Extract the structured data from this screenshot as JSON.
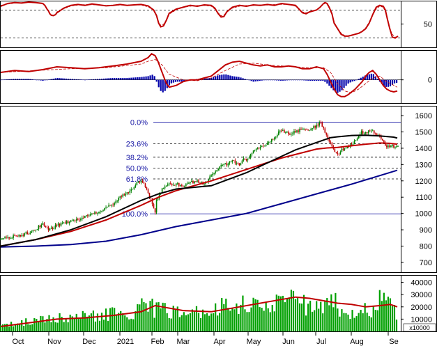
{
  "chart_data": [
    {
      "panel": "stochastic",
      "type": "line",
      "ylim": [
        0,
        100
      ],
      "y_ticks": [
        {
          "value": 50,
          "label": "50"
        }
      ],
      "ref_lines": [
        80,
        20
      ],
      "colors": {
        "main": "#c00000",
        "signal": "#c00000"
      },
      "series": [
        {
          "role": "main",
          "x": [
            0,
            10,
            20,
            30,
            40,
            50,
            60,
            63,
            66,
            68,
            70,
            72,
            75,
            78,
            80,
            90,
            100,
            110,
            120,
            130,
            140,
            150,
            160,
            170,
            180,
            190,
            200,
            210,
            218,
            222,
            225,
            228,
            232,
            236,
            240,
            250,
            260,
            270,
            280,
            290,
            300,
            305,
            310,
            314,
            318,
            322,
            330,
            340,
            350,
            360,
            370,
            380,
            390,
            400,
            410,
            420,
            425,
            430,
            435,
            440,
            450,
            455,
            460,
            462,
            465,
            468,
            472,
            475,
            480,
            485,
            490,
            495,
            500,
            505,
            510,
            515,
            520,
            525,
            530,
            535,
            540,
            545,
            548,
            551,
            554,
            558,
            562,
            566
          ],
          "y": [
            88,
            94,
            96,
            95,
            97,
            96,
            94,
            90,
            82,
            78,
            72,
            69,
            68,
            70,
            74,
            84,
            90,
            92,
            90,
            93,
            91,
            89,
            90,
            92,
            90,
            91,
            92,
            89,
            80,
            68,
            52,
            44,
            46,
            58,
            73,
            82,
            86,
            90,
            88,
            91,
            90,
            84,
            72,
            65,
            66,
            76,
            86,
            90,
            88,
            91,
            90,
            92,
            90,
            94,
            92,
            90,
            82,
            74,
            72,
            76,
            80,
            86,
            94,
            96,
            94,
            86,
            72,
            52,
            40,
            28,
            24,
            24,
            26,
            28,
            30,
            34,
            40,
            52,
            70,
            86,
            90,
            88,
            80,
            60,
            42,
            22,
            20,
            24
          ]
        }
      ]
    },
    {
      "panel": "macd",
      "type": "line+histogram",
      "ylim": [
        -25,
        32
      ],
      "y_ticks": [
        {
          "value": 0,
          "label": "0"
        }
      ],
      "colors": {
        "line": "#c00000",
        "signal": "#c00000",
        "histogram": "#0000aa"
      },
      "series": [
        {
          "role": "macd",
          "x": [
            0,
            20,
            40,
            60,
            80,
            100,
            120,
            140,
            160,
            180,
            200,
            210,
            215,
            220,
            224,
            228,
            232,
            236,
            240,
            250,
            260,
            270,
            280,
            290,
            300,
            310,
            320,
            330,
            340,
            350,
            360,
            370,
            380,
            390,
            400,
            410,
            420,
            430,
            440,
            450,
            460,
            465,
            470,
            475,
            480,
            485,
            490,
            495,
            500,
            505,
            510,
            515,
            520,
            525,
            530,
            535,
            540,
            545,
            550,
            555,
            560,
            565
          ],
          "y": [
            8,
            10,
            9,
            11,
            14,
            13,
            12,
            13,
            15,
            17,
            20,
            24,
            28,
            26,
            20,
            12,
            4,
            -4,
            -8,
            -6,
            -2,
            0,
            0,
            2,
            4,
            10,
            16,
            19,
            20,
            18,
            16,
            15,
            16,
            14,
            14,
            15,
            14,
            12,
            12,
            14,
            12,
            6,
            -2,
            -10,
            -16,
            -18,
            -18,
            -16,
            -13,
            -10,
            -6,
            -2,
            4,
            8,
            10,
            6,
            0,
            -6,
            -10,
            -12,
            -13,
            -12
          ]
        },
        {
          "role": "signal",
          "x": [
            0,
            50,
            100,
            150,
            200,
            210,
            220,
            230,
            240,
            260,
            280,
            300,
            320,
            340,
            360,
            380,
            400,
            420,
            440,
            460,
            470,
            480,
            490,
            500,
            510,
            520,
            530,
            540,
            550,
            565
          ],
          "y": [
            8,
            10,
            12,
            13,
            17,
            20,
            22,
            16,
            6,
            0,
            -1,
            2,
            10,
            17,
            18,
            16,
            15,
            14,
            13,
            13,
            8,
            -4,
            -12,
            -14,
            -10,
            -4,
            2,
            4,
            -2,
            -8
          ]
        },
        {
          "role": "histogram",
          "x": [
            0,
            20,
            40,
            60,
            80,
            100,
            120,
            140,
            160,
            180,
            200,
            210,
            214,
            218,
            222,
            226,
            230,
            234,
            238,
            242,
            250,
            260,
            280,
            300,
            310,
            320,
            330,
            340,
            360,
            380,
            400,
            420,
            440,
            460,
            465,
            470,
            475,
            480,
            485,
            490,
            495,
            500,
            505,
            510,
            515,
            520,
            525,
            530,
            535,
            540,
            545,
            550,
            555,
            560,
            565
          ],
          "y": [
            0,
            1,
            1,
            -1,
            2,
            1,
            0,
            1,
            2,
            2,
            3,
            4,
            5,
            6,
            -2,
            -10,
            -14,
            -12,
            -8,
            -4,
            -2,
            -2,
            1,
            2,
            5,
            6,
            4,
            3,
            -2,
            0,
            -1,
            0,
            -1,
            -1,
            -4,
            -8,
            -12,
            -14,
            -12,
            -8,
            -4,
            -2,
            -1,
            1,
            3,
            5,
            6,
            7,
            3,
            -2,
            -6,
            -8,
            -7,
            -4,
            -3
          ]
        }
      ]
    },
    {
      "panel": "price",
      "type": "candlestick",
      "ylim": [
        640,
        1660
      ],
      "y_ticks": [
        {
          "value": 700,
          "label": "700"
        },
        {
          "value": 800,
          "label": "800"
        },
        {
          "value": 900,
          "label": "900"
        },
        {
          "value": 1000,
          "label": "1000"
        },
        {
          "value": 1100,
          "label": "1100"
        },
        {
          "value": 1200,
          "label": "1200"
        },
        {
          "value": 1300,
          "label": "1300"
        },
        {
          "value": 1400,
          "label": "1400"
        },
        {
          "value": 1500,
          "label": "1500"
        },
        {
          "value": 1600,
          "label": "1600"
        }
      ],
      "fibonacci": [
        {
          "label": "0.0%",
          "value": 1560
        },
        {
          "label": "23.6%",
          "value": 1427
        },
        {
          "label": "38.2%",
          "value": 1345
        },
        {
          "label": "50.0%",
          "value": 1278
        },
        {
          "label": "61.8%",
          "value": 1212
        },
        {
          "label": "100.0%",
          "value": 998
        }
      ],
      "colors": {
        "up": "#008000",
        "down": "#c00000",
        "ma_short": "#c00000",
        "ma_medium": "#000000",
        "ma_long": "#00008b",
        "fib": "#1a1aa6"
      },
      "close": {
        "x": [
          0,
          20,
          40,
          55,
          60,
          65,
          70,
          80,
          100,
          120,
          140,
          150,
          160,
          170,
          180,
          190,
          195,
          200,
          205,
          210,
          215,
          218,
          220,
          222,
          225,
          230,
          235,
          240,
          250,
          260,
          270,
          280,
          290,
          300,
          305,
          310,
          320,
          330,
          340,
          345,
          350,
          360,
          370,
          380,
          390,
          400,
          410,
          420,
          430,
          440,
          450,
          455,
          460,
          465,
          470,
          475,
          480,
          485,
          490,
          495,
          500,
          505,
          510,
          515,
          520,
          525,
          530,
          535,
          540,
          545,
          550,
          555,
          560,
          565
        ],
        "y": [
          840,
          860,
          880,
          920,
          940,
          910,
          900,
          930,
          950,
          980,
          1010,
          1040,
          1060,
          1100,
          1130,
          1160,
          1190,
          1200,
          1170,
          1120,
          1080,
          1030,
          1000,
          1080,
          1110,
          1150,
          1170,
          1180,
          1180,
          1170,
          1190,
          1200,
          1180,
          1230,
          1260,
          1280,
          1300,
          1320,
          1300,
          1340,
          1330,
          1380,
          1400,
          1430,
          1470,
          1510,
          1490,
          1500,
          1520,
          1510,
          1540,
          1560,
          1520,
          1470,
          1430,
          1380,
          1360,
          1390,
          1400,
          1410,
          1420,
          1450,
          1480,
          1500,
          1490,
          1510,
          1500,
          1480,
          1470,
          1440,
          1400,
          1420,
          1410,
          1420
        ]
      },
      "series": [
        {
          "name": "",
          "role": "ma_short",
          "x": [
            0,
            50,
            100,
            150,
            200,
            225,
            250,
            300,
            350,
            400,
            450,
            465,
            480,
            500,
            520,
            540,
            555,
            565
          ],
          "y": [
            800,
            840,
            890,
            960,
            1050,
            1100,
            1140,
            1200,
            1270,
            1340,
            1395,
            1402,
            1405,
            1415,
            1425,
            1432,
            1430,
            1425
          ]
        },
        {
          "name": "",
          "role": "ma_medium",
          "x": [
            0,
            50,
            100,
            150,
            200,
            225,
            250,
            300,
            350,
            400,
            420,
            440,
            460,
            470,
            480,
            500,
            520,
            540,
            560,
            565
          ],
          "y": [
            800,
            840,
            900,
            980,
            1080,
            1120,
            1150,
            1170,
            1250,
            1350,
            1390,
            1420,
            1450,
            1465,
            1470,
            1478,
            1480,
            1475,
            1468,
            1462
          ]
        },
        {
          "name": "",
          "role": "ma_long",
          "x": [
            0,
            50,
            100,
            150,
            200,
            250,
            300,
            350,
            400,
            450,
            500,
            550,
            565
          ],
          "y": [
            795,
            800,
            810,
            830,
            870,
            920,
            960,
            1000,
            1060,
            1120,
            1180,
            1245,
            1265
          ]
        }
      ]
    },
    {
      "panel": "volume",
      "type": "bar",
      "ylim": [
        0,
        46000
      ],
      "unit_label": "x10000",
      "y_ticks": [
        {
          "value": 10000,
          "label": "10000"
        },
        {
          "value": 20000,
          "label": "20000"
        },
        {
          "value": 30000,
          "label": "30000"
        },
        {
          "value": 40000,
          "label": "40000"
        }
      ],
      "colors": {
        "bar": "#00a000",
        "ma": "#c00000"
      },
      "volume_profile": {
        "x": [
          0,
          40,
          80,
          120,
          150,
          180,
          200,
          205,
          210,
          215,
          220,
          230,
          260,
          300,
          320,
          360,
          390,
          410,
          420,
          440,
          460,
          475,
          480,
          500,
          520,
          530,
          545,
          560,
          565
        ],
        "y": [
          5000,
          9000,
          12000,
          13000,
          15000,
          17000,
          19000,
          30000,
          22000,
          24000,
          18000,
          19000,
          16000,
          19000,
          22000,
          23000,
          24000,
          28000,
          26000,
          22000,
          19000,
          36000,
          16000,
          17000,
          18000,
          20000,
          34000,
          18000,
          17000
        ]
      },
      "series": [
        {
          "name": "",
          "role": "volume_ma",
          "x": [
            0,
            40,
            80,
            120,
            160,
            200,
            220,
            260,
            300,
            340,
            380,
            420,
            440,
            460,
            480,
            500,
            520,
            540,
            555,
            565
          ],
          "y": [
            4000,
            7000,
            10000,
            11000,
            13000,
            16000,
            21000,
            17000,
            16000,
            20000,
            24000,
            28000,
            27000,
            25000,
            23000,
            22000,
            20000,
            21000,
            22000,
            20000
          ]
        }
      ]
    }
  ],
  "x_axis": {
    "labels": [
      {
        "label": "Oct",
        "x": 26
      },
      {
        "label": "Nov",
        "x": 78
      },
      {
        "label": "Dec",
        "x": 128
      },
      {
        "label": "2021",
        "x": 180
      },
      {
        "label": "Feb",
        "x": 226
      },
      {
        "label": "Mar",
        "x": 263
      },
      {
        "label": "Apr",
        "x": 315
      },
      {
        "label": "May",
        "x": 364
      },
      {
        "label": "Jun",
        "x": 414
      },
      {
        "label": "Jul",
        "x": 461
      },
      {
        "label": "Aug",
        "x": 512
      },
      {
        "label": "Se",
        "x": 565
      }
    ]
  }
}
